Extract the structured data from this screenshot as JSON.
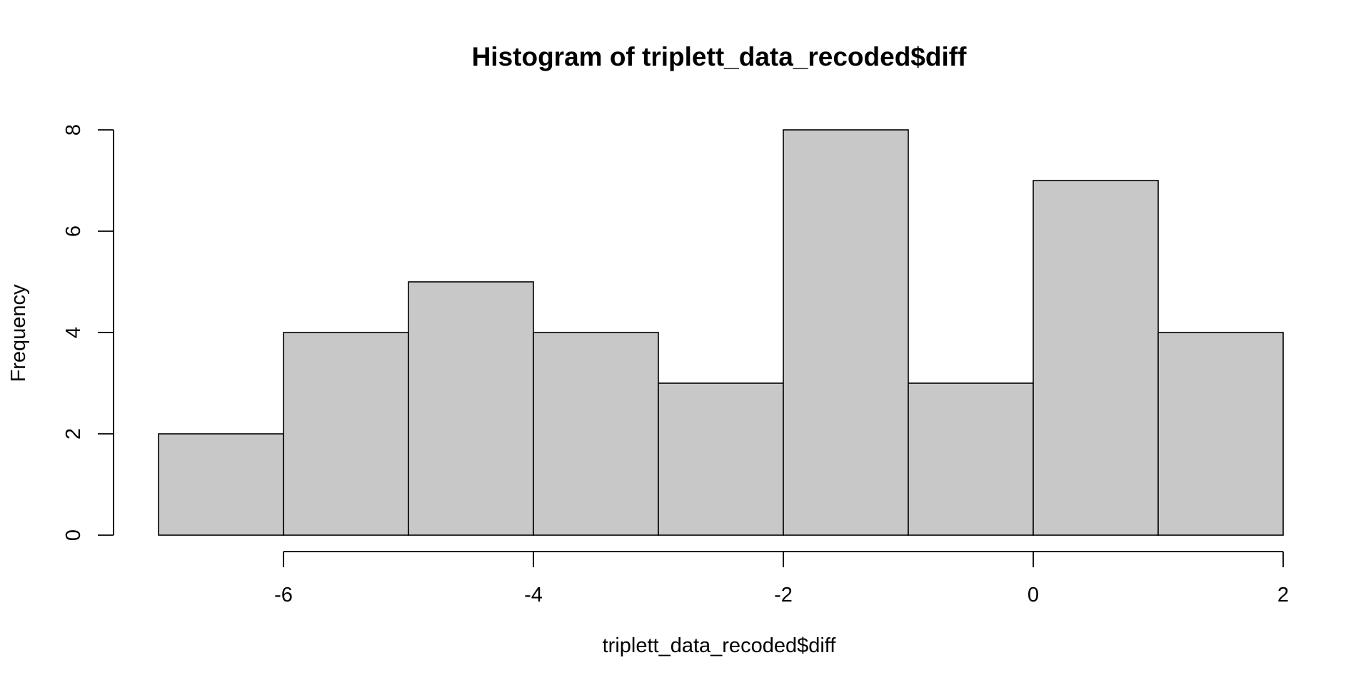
{
  "chart_data": {
    "type": "bar",
    "title": "Histogram of triplett_data_recoded$diff",
    "xlabel": "triplett_data_recoded$diff",
    "ylabel": "Frequency",
    "bins": [
      {
        "from": -7,
        "to": -6,
        "count": 2
      },
      {
        "from": -6,
        "to": -5,
        "count": 4
      },
      {
        "from": -5,
        "to": -4,
        "count": 5
      },
      {
        "from": -4,
        "to": -3,
        "count": 4
      },
      {
        "from": -3,
        "to": -2,
        "count": 3
      },
      {
        "from": -2,
        "to": -1,
        "count": 8
      },
      {
        "from": -1,
        "to": 0,
        "count": 3
      },
      {
        "from": 0,
        "to": 1,
        "count": 7
      },
      {
        "from": 1,
        "to": 2,
        "count": 4
      }
    ],
    "xlim": [
      -7,
      2
    ],
    "ylim": [
      0,
      8
    ],
    "x_ticks": [
      -6,
      -4,
      -2,
      0,
      2
    ],
    "y_ticks": [
      0,
      2,
      4,
      6,
      8
    ],
    "x_tick_labels": [
      "-6",
      "-4",
      "-2",
      "0",
      "2"
    ],
    "y_tick_labels": [
      "0",
      "2",
      "4",
      "6",
      "8"
    ],
    "bar_color": "#c8c8c8",
    "edge_color": "#000000",
    "grid": false,
    "legend": "none"
  }
}
